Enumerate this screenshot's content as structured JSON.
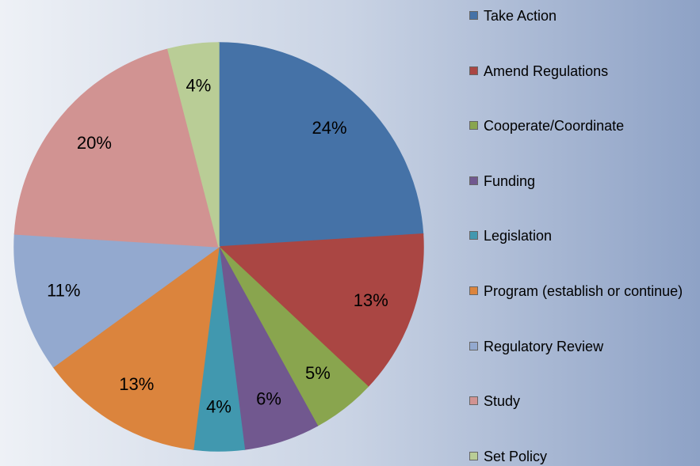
{
  "chart_data": {
    "type": "pie",
    "categories": [
      "Take Action",
      "Amend Regulations",
      "Cooperate/Coordinate",
      "Funding",
      "Legislation",
      "Program (establish or continue)",
      "Regulatory Review",
      "Study",
      "Set Policy"
    ],
    "values": [
      24,
      13,
      5,
      6,
      4,
      13,
      11,
      20,
      4
    ],
    "value_labels": [
      "24%",
      "13%",
      "5%",
      "6%",
      "4%",
      "13%",
      "11%",
      "20%",
      "4%"
    ],
    "colors": [
      "#4572a7",
      "#aa4643",
      "#89a54e",
      "#71588f",
      "#4198af",
      "#db843d",
      "#93a9cf",
      "#d19392",
      "#b9cd96"
    ],
    "legend": "right"
  }
}
